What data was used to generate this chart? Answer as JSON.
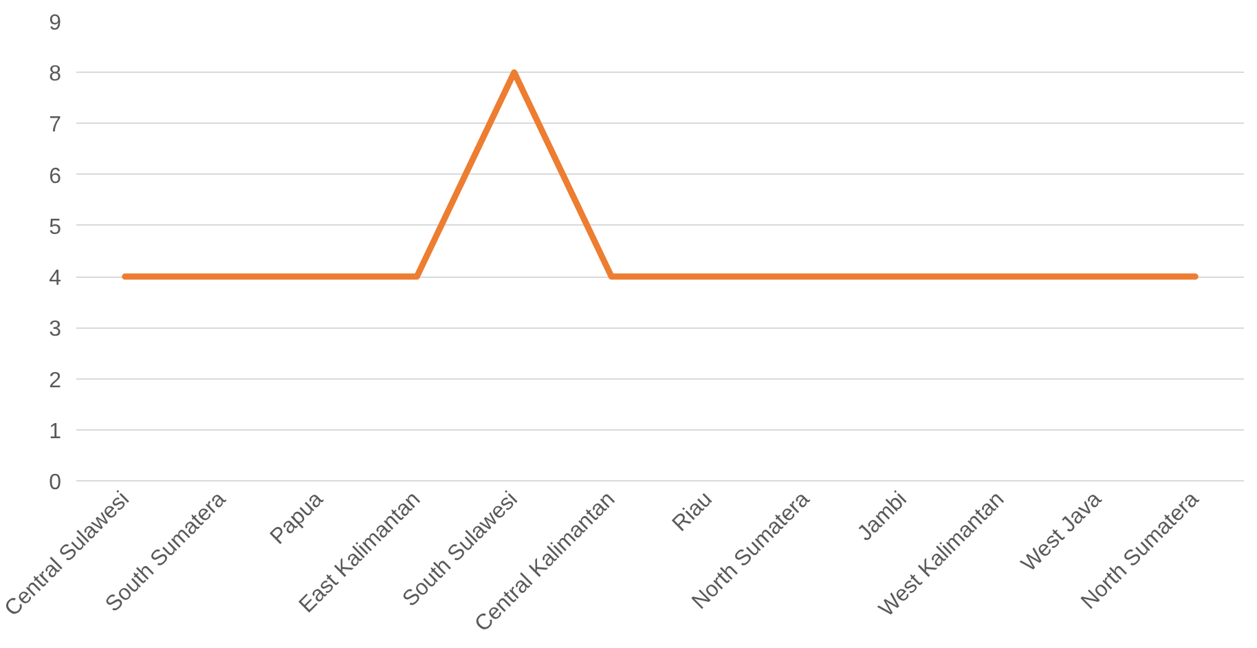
{
  "chart_data": {
    "type": "line",
    "categories": [
      "Central Sulawesi",
      "South Sumatera",
      "Papua",
      "East Kalimantan",
      "South Sulawesi",
      "Central Kalimantan",
      "Riau",
      "North Sumatera",
      "Jambi",
      "West Kalimantan",
      "West Java",
      "North Sumatera"
    ],
    "series": [
      {
        "color": "#ed7d31",
        "values": [
          4,
          4,
          4,
          4,
          8,
          4,
          4,
          4,
          4,
          4,
          4,
          4
        ]
      }
    ],
    "ylim": [
      0,
      9
    ],
    "yticks": [
      0,
      1,
      2,
      3,
      4,
      5,
      6,
      7,
      8,
      9
    ],
    "grid": "y",
    "marker": "none",
    "line_style": "solid"
  }
}
